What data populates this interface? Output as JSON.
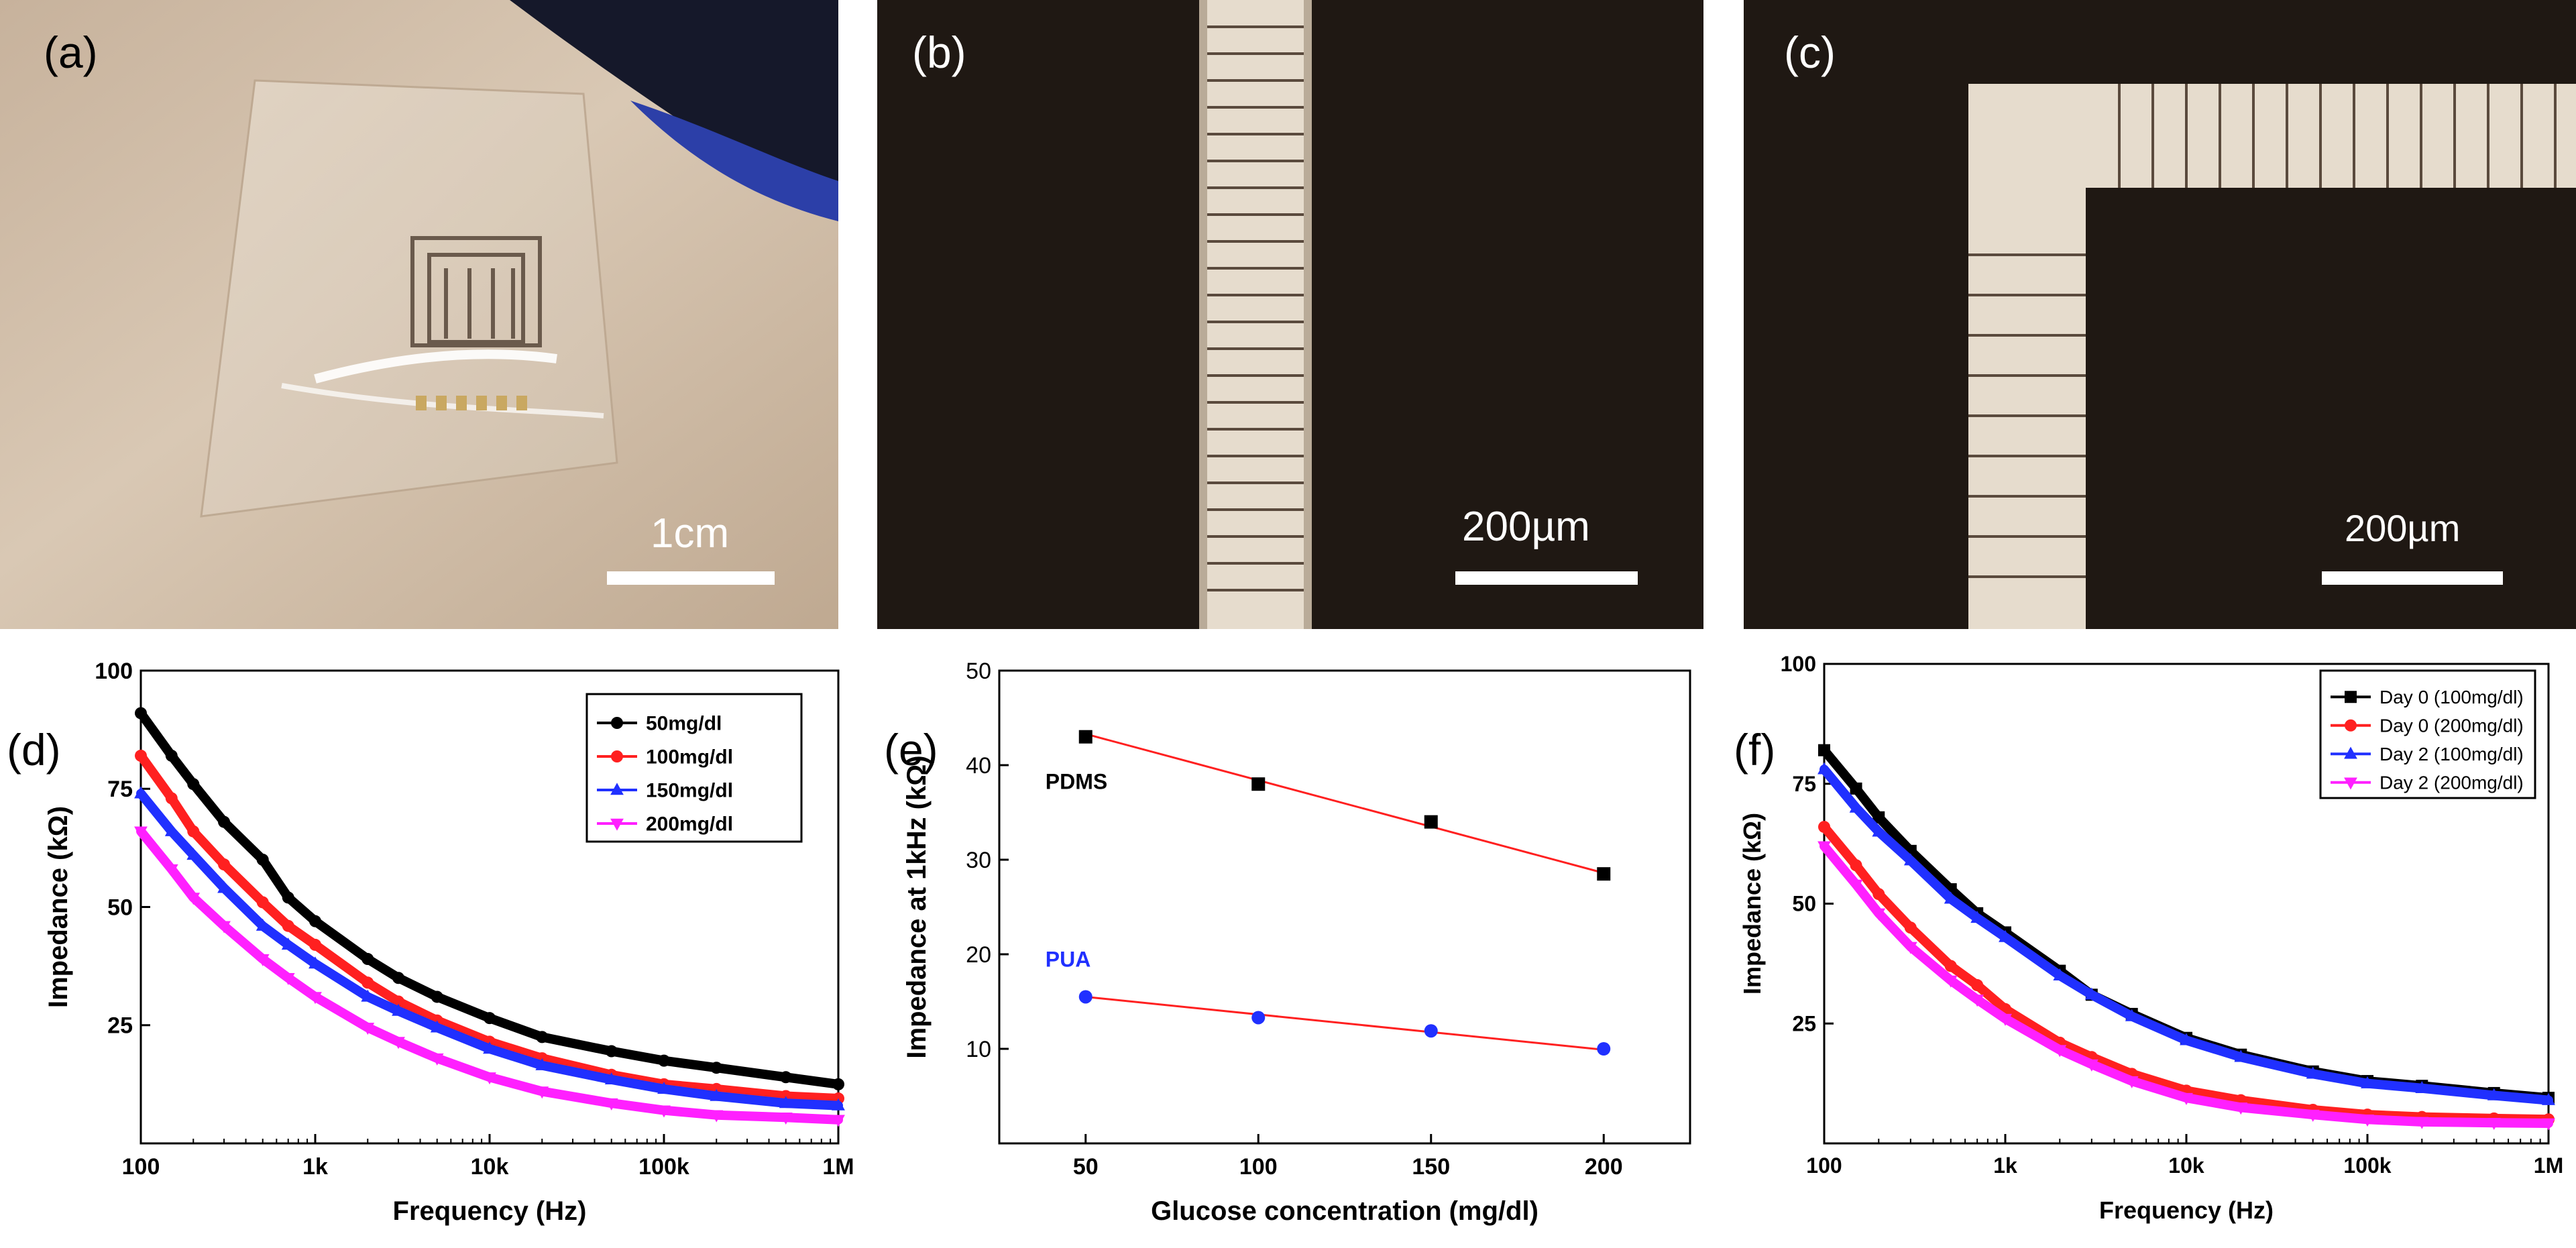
{
  "panels": {
    "a": {
      "label": "(a)",
      "scale": "1cm"
    },
    "b": {
      "label": "(b)",
      "scale": "200µm"
    },
    "c": {
      "label": "(c)",
      "scale": "200µm"
    },
    "d": {
      "label": "(d)"
    },
    "e": {
      "label": "(e)"
    },
    "f": {
      "label": "(f)"
    }
  },
  "colors": {
    "black": "#000000",
    "red": "#ff2020",
    "blue": "#2030ff",
    "magenta": "#ff20ff",
    "fit": "#ff2020"
  },
  "chart_data": [
    {
      "id": "d",
      "type": "line",
      "xlabel": "Frequency (Hz)",
      "ylabel": "Impedance (kΩ)",
      "xscale": "log",
      "xlim": [
        100,
        1000000
      ],
      "ylim": [
        0,
        100
      ],
      "xticks": [
        {
          "v": 100,
          "label": "100"
        },
        {
          "v": 1000,
          "label": "1k"
        },
        {
          "v": 10000,
          "label": "10k"
        },
        {
          "v": 100000,
          "label": "100k"
        },
        {
          "v": 1000000,
          "label": "1M"
        }
      ],
      "yticks": [
        {
          "v": 25,
          "label": "25"
        },
        {
          "v": 50,
          "label": "50"
        },
        {
          "v": 75,
          "label": "75"
        },
        {
          "v": 100,
          "label": "100"
        }
      ],
      "legend_position": "top-right",
      "series": [
        {
          "name": "50mg/dl",
          "color": "#000000",
          "marker": "circle",
          "x": [
            100,
            150,
            200,
            300,
            500,
            700,
            1000,
            2000,
            3000,
            5000,
            10000,
            20000,
            50000,
            100000,
            200000,
            500000,
            1000000
          ],
          "y": [
            91,
            82,
            76,
            68,
            60,
            52,
            47,
            39,
            35,
            31,
            26.5,
            22.5,
            19.5,
            17.5,
            16,
            14,
            12.5
          ]
        },
        {
          "name": "100mg/dl",
          "color": "#ff2020",
          "marker": "circle",
          "x": [
            100,
            150,
            200,
            300,
            500,
            700,
            1000,
            2000,
            3000,
            5000,
            10000,
            20000,
            50000,
            100000,
            200000,
            500000,
            1000000
          ],
          "y": [
            82,
            73,
            66,
            59,
            51,
            46,
            42,
            34,
            30,
            26,
            21.5,
            18,
            14.5,
            12.5,
            11.5,
            10,
            9.5
          ]
        },
        {
          "name": "150mg/dl",
          "color": "#2030ff",
          "marker": "triangle",
          "x": [
            100,
            150,
            200,
            300,
            500,
            700,
            1000,
            2000,
            3000,
            5000,
            10000,
            20000,
            50000,
            100000,
            200000,
            500000,
            1000000
          ],
          "y": [
            74,
            66,
            61,
            54,
            46,
            42,
            38,
            31,
            28,
            24.5,
            20,
            16.5,
            13.5,
            11.5,
            10,
            8.5,
            8
          ]
        },
        {
          "name": "200mg/dl",
          "color": "#ff20ff",
          "marker": "triangle-down",
          "x": [
            100,
            150,
            200,
            300,
            500,
            700,
            1000,
            2000,
            3000,
            5000,
            10000,
            20000,
            50000,
            100000,
            200000,
            500000,
            1000000
          ],
          "y": [
            66,
            58,
            52,
            46,
            39,
            35,
            31,
            24.5,
            21.5,
            18,
            14,
            11,
            8.5,
            7,
            6,
            5.5,
            5
          ]
        }
      ]
    },
    {
      "id": "e",
      "type": "scatter",
      "xlabel": "Glucose concentration (mg/dl)",
      "ylabel": "Impedance at 1kHz (kΩ)",
      "xlim": [
        25,
        225
      ],
      "ylim": [
        0,
        50
      ],
      "xticks": [
        {
          "v": 50,
          "label": "50"
        },
        {
          "v": 100,
          "label": "100"
        },
        {
          "v": 150,
          "label": "150"
        },
        {
          "v": 200,
          "label": "200"
        }
      ],
      "yticks": [
        {
          "v": 10,
          "label": "10"
        },
        {
          "v": 20,
          "label": "20"
        },
        {
          "v": 30,
          "label": "30"
        },
        {
          "v": 40,
          "label": "40"
        },
        {
          "v": 50,
          "label": "50"
        }
      ],
      "series": [
        {
          "name": "PDMS",
          "color": "#000000",
          "label_color": "#000000",
          "marker": "square",
          "x": [
            50,
            100,
            150,
            200
          ],
          "y": [
            43,
            38,
            34,
            28.5
          ],
          "fit": [
            43.3,
            28.6
          ]
        },
        {
          "name": "PUA",
          "color": "#2030ff",
          "label_color": "#2030ff",
          "marker": "circle",
          "x": [
            50,
            100,
            150,
            200
          ],
          "y": [
            15.5,
            13.3,
            11.9,
            10
          ],
          "fit": [
            15.5,
            9.9
          ]
        }
      ]
    },
    {
      "id": "f",
      "type": "line",
      "xlabel": "Frequency (Hz)",
      "ylabel": "Impedance (kΩ)",
      "xscale": "log",
      "xlim": [
        100,
        1000000
      ],
      "ylim": [
        0,
        100
      ],
      "xticks": [
        {
          "v": 100,
          "label": "100"
        },
        {
          "v": 1000,
          "label": "1k"
        },
        {
          "v": 10000,
          "label": "10k"
        },
        {
          "v": 100000,
          "label": "100k"
        },
        {
          "v": 1000000,
          "label": "1M"
        }
      ],
      "yticks": [
        {
          "v": 25,
          "label": "25"
        },
        {
          "v": 50,
          "label": "50"
        },
        {
          "v": 75,
          "label": "75"
        },
        {
          "v": 100,
          "label": "100"
        }
      ],
      "legend_position": "top-right",
      "series": [
        {
          "name": "Day 0 (100mg/dl)",
          "color": "#000000",
          "marker": "square",
          "x": [
            100,
            150,
            200,
            300,
            500,
            700,
            1000,
            2000,
            3000,
            5000,
            10000,
            20000,
            50000,
            100000,
            200000,
            500000,
            1000000
          ],
          "y": [
            82,
            74,
            68,
            61,
            53,
            48,
            44,
            36,
            31,
            27,
            22,
            18.5,
            15,
            13,
            12,
            10.5,
            9.5
          ]
        },
        {
          "name": "Day 0 (200mg/dl)",
          "color": "#ff2020",
          "marker": "circle",
          "x": [
            100,
            150,
            200,
            300,
            500,
            700,
            1000,
            2000,
            3000,
            5000,
            10000,
            20000,
            50000,
            100000,
            200000,
            500000,
            1000000
          ],
          "y": [
            66,
            58,
            52,
            45,
            37,
            33,
            28,
            21,
            18,
            14.5,
            11,
            9,
            7,
            6,
            5.5,
            5.2,
            5
          ]
        },
        {
          "name": "Day 2 (100mg/dl)",
          "color": "#2030ff",
          "marker": "triangle",
          "x": [
            100,
            150,
            200,
            300,
            500,
            700,
            1000,
            2000,
            3000,
            5000,
            10000,
            20000,
            50000,
            100000,
            200000,
            500000,
            1000000
          ],
          "y": [
            78,
            70,
            65,
            59,
            51,
            47,
            43,
            35,
            31,
            26.5,
            21.5,
            18,
            14.5,
            12.5,
            11.5,
            10,
            9
          ]
        },
        {
          "name": "Day 2 (200mg/dl)",
          "color": "#ff20ff",
          "marker": "triangle-down",
          "x": [
            100,
            150,
            200,
            300,
            500,
            700,
            1000,
            2000,
            3000,
            5000,
            10000,
            20000,
            50000,
            100000,
            200000,
            500000,
            1000000
          ],
          "y": [
            62,
            54,
            48,
            41,
            34,
            30,
            26,
            19.5,
            16.5,
            13,
            9.5,
            7.5,
            6,
            5,
            4.5,
            4.3,
            4.2
          ]
        }
      ]
    }
  ]
}
